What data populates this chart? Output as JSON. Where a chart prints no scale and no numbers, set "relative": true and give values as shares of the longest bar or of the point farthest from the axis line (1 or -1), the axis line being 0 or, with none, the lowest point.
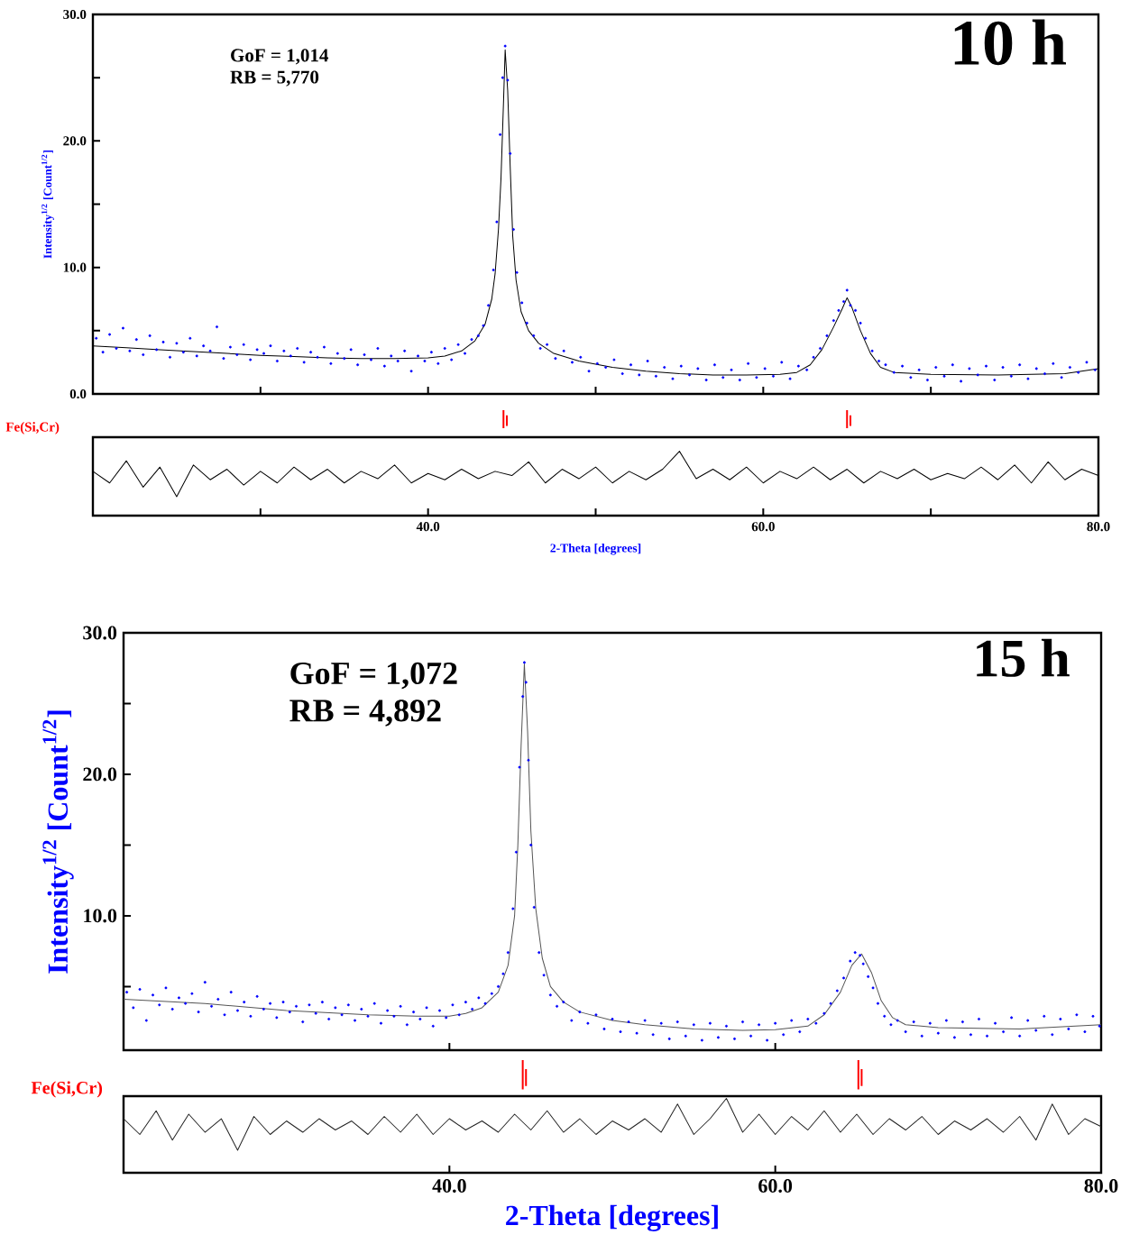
{
  "chart_data": [
    {
      "type": "scatter",
      "title": "10 h",
      "ylabel": "Intensity$^{1/2}$ [Count$^{1/2}$]",
      "annotations": [
        "GoF = 1,014",
        "RB = 5,770"
      ],
      "xlim": [
        20,
        80
      ],
      "xticks": [
        {
          "value": 30,
          "label": null
        },
        {
          "value": 40,
          "label": null
        },
        {
          "value": 50,
          "label": null
        },
        {
          "value": 60,
          "label": null
        },
        {
          "value": 70,
          "label": null
        }
      ],
      "ylim": [
        0,
        30
      ],
      "yticks": [
        {
          "value": 0,
          "label": "0.0"
        },
        {
          "value": 5,
          "label": null
        },
        {
          "value": 10,
          "label": "10.0"
        },
        {
          "value": 15,
          "label": null
        },
        {
          "value": 20,
          "label": "20.0"
        },
        {
          "value": 25,
          "label": null
        },
        {
          "value": 30,
          "label": "30.0"
        }
      ],
      "tick_labels": "y",
      "series": [
        {
          "type": "scatter",
          "marker": "circle",
          "color": "#0000ff",
          "x": [
            20.2,
            20.6,
            21.0,
            21.4,
            21.8,
            22.2,
            22.6,
            23.0,
            23.4,
            23.8,
            24.2,
            24.6,
            25.0,
            25.4,
            25.8,
            26.2,
            26.6,
            27.0,
            27.4,
            27.8,
            28.2,
            28.6,
            29.0,
            29.4,
            29.8,
            30.2,
            30.6,
            31.0,
            31.4,
            31.8,
            32.2,
            32.6,
            33.0,
            33.4,
            33.8,
            34.2,
            34.6,
            35.0,
            35.4,
            35.8,
            36.2,
            36.6,
            37.0,
            37.4,
            37.8,
            38.2,
            38.6,
            39.0,
            39.4,
            39.8,
            40.2,
            40.6,
            41.0,
            41.4,
            41.8,
            42.2,
            42.6,
            43.0,
            43.3,
            43.6,
            43.9,
            44.1,
            44.3,
            44.45,
            44.6,
            44.75,
            44.9,
            45.1,
            45.3,
            45.6,
            45.9,
            46.3,
            46.7,
            47.1,
            47.6,
            48.1,
            48.6,
            49.1,
            49.6,
            50.1,
            50.6,
            51.1,
            51.6,
            52.1,
            52.6,
            53.1,
            53.6,
            54.1,
            54.6,
            55.1,
            55.6,
            56.1,
            56.6,
            57.1,
            57.6,
            58.1,
            58.6,
            59.1,
            59.6,
            60.1,
            60.6,
            61.1,
            61.6,
            62.1,
            62.6,
            63.0,
            63.4,
            63.8,
            64.2,
            64.5,
            64.8,
            65.0,
            65.2,
            65.5,
            65.8,
            66.1,
            66.5,
            66.9,
            67.3,
            67.8,
            68.3,
            68.8,
            69.3,
            69.8,
            70.3,
            70.8,
            71.3,
            71.8,
            72.3,
            72.8,
            73.3,
            73.8,
            74.3,
            74.8,
            75.3,
            75.8,
            76.3,
            76.8,
            77.3,
            77.8,
            78.3,
            78.8,
            79.3,
            79.8
          ],
          "values": [
            4.4,
            3.3,
            4.7,
            3.6,
            5.2,
            3.4,
            4.3,
            3.1,
            4.6,
            3.5,
            4.1,
            2.9,
            4.0,
            3.3,
            4.4,
            3.0,
            3.8,
            3.4,
            5.3,
            2.8,
            3.7,
            3.1,
            3.9,
            2.7,
            3.5,
            3.2,
            3.8,
            2.6,
            3.4,
            3.0,
            3.6,
            2.5,
            3.3,
            2.9,
            3.7,
            2.4,
            3.2,
            2.8,
            3.5,
            2.3,
            3.1,
            2.7,
            3.6,
            2.2,
            3.0,
            2.6,
            3.4,
            1.8,
            3.0,
            2.6,
            3.3,
            2.4,
            3.6,
            2.7,
            3.9,
            3.2,
            4.3,
            4.6,
            5.4,
            7.0,
            9.8,
            13.6,
            20.5,
            25.0,
            27.5,
            24.8,
            19.0,
            13.0,
            9.6,
            7.2,
            5.6,
            4.6,
            3.6,
            3.9,
            2.8,
            3.4,
            2.5,
            2.9,
            1.8,
            2.4,
            2.1,
            2.7,
            1.6,
            2.3,
            1.5,
            2.6,
            1.4,
            2.1,
            1.2,
            2.2,
            1.5,
            2.0,
            1.1,
            2.3,
            1.3,
            1.9,
            1.1,
            2.4,
            1.3,
            2.0,
            1.4,
            2.5,
            1.2,
            2.2,
            1.9,
            2.9,
            3.6,
            4.6,
            5.8,
            6.6,
            7.3,
            8.2,
            7.0,
            6.6,
            5.6,
            4.4,
            3.4,
            2.6,
            2.3,
            1.7,
            2.2,
            1.3,
            1.9,
            1.1,
            2.1,
            1.4,
            2.3,
            1.0,
            2.0,
            1.5,
            2.2,
            1.1,
            2.1,
            1.4,
            2.3,
            1.2,
            2.0,
            1.6,
            2.4,
            1.3,
            2.1,
            1.7,
            2.5,
            1.9
          ]
        },
        {
          "type": "line",
          "color": "#000000",
          "x": [
            20,
            22,
            24,
            26,
            28,
            30,
            32,
            34,
            36,
            38,
            40,
            41,
            42,
            42.8,
            43.4,
            43.8,
            44.0,
            44.2,
            44.35,
            44.5,
            44.6,
            44.75,
            44.9,
            45.05,
            45.25,
            45.55,
            46.0,
            46.6,
            47.5,
            49,
            51,
            53,
            55,
            57,
            59,
            61,
            62,
            62.8,
            63.5,
            64.2,
            64.7,
            65.0,
            65.3,
            65.8,
            66.4,
            67.0,
            67.8,
            70,
            74,
            78,
            80
          ],
          "values": [
            3.8,
            3.65,
            3.5,
            3.35,
            3.2,
            3.05,
            2.95,
            2.85,
            2.8,
            2.8,
            2.85,
            3.0,
            3.4,
            4.2,
            5.5,
            7.5,
            9.5,
            13,
            17,
            23,
            27.2,
            24,
            18,
            12.5,
            9,
            6.5,
            5.0,
            4.0,
            3.2,
            2.6,
            2.1,
            1.8,
            1.6,
            1.5,
            1.5,
            1.55,
            1.7,
            2.3,
            3.5,
            5.3,
            6.7,
            7.6,
            6.8,
            5.0,
            3.2,
            2.1,
            1.7,
            1.55,
            1.5,
            1.6,
            2.0
          ]
        }
      ]
    },
    {
      "type": "line",
      "relative": true,
      "xlabel": "2-Theta [degrees]",
      "xlim": [
        20,
        80
      ],
      "xticks": [
        {
          "value": 30,
          "label": null
        },
        {
          "value": 40,
          "label": "40.0"
        },
        {
          "value": 50,
          "label": null
        },
        {
          "value": 60,
          "label": "60.0"
        },
        {
          "value": 70,
          "label": null
        },
        {
          "value": 80,
          "label": "80.0"
        }
      ],
      "tick_labels": "x",
      "series": [
        {
          "color": "#000000",
          "x": [
            20,
            21,
            22,
            23,
            24,
            25,
            26,
            27,
            28,
            29,
            30,
            31,
            32,
            33,
            34,
            35,
            36,
            37,
            38,
            39,
            40,
            41,
            42,
            43,
            44,
            45,
            46,
            47,
            48,
            49,
            50,
            51,
            52,
            53,
            54,
            55,
            56,
            57,
            58,
            59,
            60,
            61,
            62,
            63,
            64,
            65,
            66,
            67,
            68,
            69,
            70,
            71,
            72,
            73,
            74,
            75,
            76,
            77,
            78,
            79,
            80
          ],
          "values": [
            0.42,
            0.31,
            0.52,
            0.27,
            0.46,
            0.18,
            0.48,
            0.34,
            0.44,
            0.29,
            0.42,
            0.31,
            0.46,
            0.34,
            0.44,
            0.31,
            0.42,
            0.35,
            0.48,
            0.31,
            0.4,
            0.34,
            0.44,
            0.35,
            0.42,
            0.38,
            0.51,
            0.31,
            0.44,
            0.35,
            0.46,
            0.31,
            0.42,
            0.34,
            0.44,
            0.61,
            0.35,
            0.44,
            0.34,
            0.46,
            0.31,
            0.42,
            0.35,
            0.46,
            0.34,
            0.44,
            0.31,
            0.42,
            0.35,
            0.44,
            0.34,
            0.4,
            0.35,
            0.46,
            0.34,
            0.48,
            0.31,
            0.51,
            0.34,
            0.44,
            0.38
          ]
        },
        {
          "type": "line",
          "name": "Fe(Si,Cr)",
          "color": "#ff0000",
          "x": [
            44.5,
            44.5,
            44.6,
            44.7,
            44.7,
            64.9,
            65.0,
            65.0,
            65.1,
            65.2,
            65.2
          ],
          "values": [
            0.83,
            1,
            null,
            0.85,
            0.95,
            null,
            0.83,
            1,
            null,
            0.85,
            0.95
          ]
        }
      ]
    },
    {
      "type": "scatter",
      "title": "15 h",
      "ylabel": "Intensity$^{1/2}$ [Count$^{1/2}$]",
      "annotations": [
        "GoF = 1,072",
        "RB = 4,892"
      ],
      "xlim": [
        20,
        80
      ],
      "xticks": [
        {
          "value": 40,
          "label": null
        },
        {
          "value": 60,
          "label": null
        }
      ],
      "ylim": [
        0.5,
        30
      ],
      "yticks": [
        {
          "value": 5,
          "label": null
        },
        {
          "value": 10,
          "label": "10.0"
        },
        {
          "value": 15,
          "label": null
        },
        {
          "value": 20,
          "label": "20.0"
        },
        {
          "value": 25,
          "label": null
        },
        {
          "value": 30,
          "label": "30.0"
        }
      ],
      "tick_labels": "y",
      "series": [
        {
          "type": "scatter",
          "marker": "circle",
          "color": "#0000ff",
          "x": [
            20.2,
            20.6,
            21.0,
            21.4,
            21.8,
            22.2,
            22.6,
            23.0,
            23.4,
            23.8,
            24.2,
            24.6,
            25.0,
            25.4,
            25.8,
            26.2,
            26.6,
            27.0,
            27.4,
            27.8,
            28.2,
            28.6,
            29.0,
            29.4,
            29.8,
            30.2,
            30.6,
            31.0,
            31.4,
            31.8,
            32.2,
            32.6,
            33.0,
            33.4,
            33.8,
            34.2,
            34.6,
            35.0,
            35.4,
            35.8,
            36.2,
            36.6,
            37.0,
            37.4,
            37.8,
            38.2,
            38.6,
            39.0,
            39.4,
            39.8,
            40.2,
            40.6,
            41.0,
            41.4,
            41.8,
            42.2,
            42.6,
            43.0,
            43.3,
            43.6,
            43.9,
            44.1,
            44.3,
            44.5,
            44.6,
            44.7,
            44.85,
            45.0,
            45.2,
            45.5,
            45.8,
            46.2,
            46.6,
            47.0,
            47.5,
            48.0,
            48.5,
            49.0,
            49.5,
            50.0,
            50.5,
            51.0,
            51.5,
            52.0,
            52.5,
            53.0,
            53.5,
            54.0,
            54.5,
            55.0,
            55.5,
            56.0,
            56.5,
            57.0,
            57.5,
            58.0,
            58.5,
            59.0,
            59.5,
            60.0,
            60.5,
            61.0,
            61.5,
            62.0,
            62.5,
            63.0,
            63.4,
            63.8,
            64.2,
            64.6,
            64.9,
            65.2,
            65.4,
            65.7,
            66.0,
            66.3,
            66.7,
            67.1,
            67.5,
            68.0,
            68.5,
            69.0,
            69.5,
            70.0,
            70.5,
            71.0,
            71.5,
            72.0,
            72.5,
            73.0,
            73.5,
            74.0,
            74.5,
            75.0,
            75.5,
            76.0,
            76.5,
            77.0,
            77.5,
            78.0,
            78.5,
            79.0,
            79.5,
            79.9
          ],
          "values": [
            4.6,
            3.5,
            4.8,
            2.6,
            4.4,
            3.7,
            4.9,
            3.4,
            4.2,
            3.8,
            4.5,
            3.2,
            5.3,
            3.6,
            4.1,
            3.0,
            4.6,
            3.3,
            3.9,
            2.9,
            4.3,
            3.4,
            3.8,
            2.8,
            3.9,
            3.2,
            3.6,
            2.5,
            3.7,
            3.1,
            3.9,
            2.7,
            3.5,
            3.0,
            3.7,
            2.6,
            3.4,
            2.9,
            3.8,
            2.4,
            3.3,
            2.9,
            3.6,
            2.3,
            3.2,
            2.7,
            3.5,
            2.2,
            3.3,
            2.8,
            3.7,
            3.0,
            3.9,
            3.4,
            4.2,
            3.8,
            4.5,
            5.0,
            5.9,
            7.4,
            10.5,
            14.5,
            20.5,
            25.5,
            27.9,
            26.5,
            21.0,
            15.0,
            10.6,
            7.4,
            5.8,
            4.4,
            3.6,
            3.9,
            2.6,
            3.2,
            2.4,
            3.0,
            2.0,
            2.7,
            1.8,
            2.5,
            1.7,
            2.6,
            1.6,
            2.4,
            1.3,
            2.5,
            1.5,
            2.3,
            1.2,
            2.4,
            1.4,
            2.2,
            1.3,
            2.5,
            1.5,
            2.3,
            1.2,
            2.4,
            1.6,
            2.6,
            1.8,
            2.7,
            2.4,
            3.1,
            3.8,
            4.7,
            5.6,
            6.8,
            7.4,
            7.2,
            6.6,
            5.7,
            4.9,
            3.8,
            2.9,
            2.3,
            2.6,
            1.8,
            2.5,
            1.5,
            2.4,
            1.7,
            2.6,
            1.4,
            2.5,
            1.6,
            2.7,
            1.5,
            2.4,
            1.8,
            2.8,
            1.5,
            2.6,
            1.9,
            2.9,
            1.6,
            2.7,
            2.0,
            3.0,
            1.8,
            2.9,
            2.2
          ]
        },
        {
          "type": "line",
          "color": "#555555",
          "x": [
            20,
            25,
            30,
            35,
            38,
            40,
            41,
            42,
            43,
            43.6,
            44.0,
            44.2,
            44.4,
            44.6,
            44.8,
            45.0,
            45.3,
            45.7,
            46.2,
            47,
            48,
            50,
            52,
            55,
            58,
            60,
            62,
            63,
            64,
            64.7,
            65.3,
            65.9,
            66.5,
            67.2,
            68,
            70,
            75,
            80
          ],
          "values": [
            4.1,
            3.8,
            3.3,
            3.0,
            2.9,
            2.9,
            3.1,
            3.5,
            4.6,
            6.5,
            10,
            15,
            22,
            27.8,
            23,
            16,
            10.5,
            7,
            5,
            3.9,
            3.2,
            2.6,
            2.3,
            2.0,
            1.9,
            1.95,
            2.2,
            3.0,
            4.6,
            6.5,
            7.3,
            6.0,
            4.0,
            2.8,
            2.3,
            2.1,
            2.0,
            2.3
          ]
        }
      ]
    },
    {
      "type": "line",
      "relative": true,
      "xlabel": "2-Theta [degrees]",
      "xlim": [
        20,
        80
      ],
      "xticks": [
        {
          "value": 40,
          "label": "40.0"
        },
        {
          "value": 60,
          "label": "60.0"
        },
        {
          "value": 80,
          "label": "80.0"
        }
      ],
      "tick_labels": "x",
      "series": [
        {
          "color": "#222222",
          "x": [
            20,
            21,
            22,
            23,
            24,
            25,
            26,
            27,
            28,
            29,
            30,
            31,
            32,
            33,
            34,
            35,
            36,
            37,
            38,
            39,
            40,
            41,
            42,
            43,
            44,
            45,
            46,
            47,
            48,
            49,
            50,
            51,
            52,
            53,
            54,
            55,
            56,
            57,
            58,
            59,
            60,
            61,
            62,
            63,
            64,
            65,
            66,
            67,
            68,
            69,
            70,
            71,
            72,
            73,
            74,
            75,
            76,
            77,
            78,
            79,
            80
          ],
          "values": [
            0.48,
            0.34,
            0.55,
            0.29,
            0.52,
            0.36,
            0.48,
            0.2,
            0.5,
            0.34,
            0.46,
            0.36,
            0.48,
            0.38,
            0.46,
            0.34,
            0.5,
            0.36,
            0.52,
            0.34,
            0.48,
            0.38,
            0.46,
            0.36,
            0.52,
            0.38,
            0.55,
            0.36,
            0.48,
            0.34,
            0.46,
            0.38,
            0.48,
            0.36,
            0.61,
            0.34,
            0.48,
            0.66,
            0.36,
            0.52,
            0.34,
            0.5,
            0.38,
            0.55,
            0.36,
            0.52,
            0.34,
            0.48,
            0.38,
            0.5,
            0.34,
            0.46,
            0.38,
            0.48,
            0.36,
            0.5,
            0.29,
            0.61,
            0.34,
            0.48,
            0.41
          ]
        },
        {
          "type": "line",
          "name": "Fe(Si,Cr)",
          "color": "#ff0000",
          "x": [
            44.5,
            44.5,
            44.6,
            44.7,
            44.7,
            64.9,
            65.1,
            65.1,
            65.2,
            65.3,
            65.3
          ],
          "values": [
            0.74,
            1,
            null,
            0.77,
            0.92,
            null,
            0.74,
            1,
            null,
            0.77,
            0.92
          ]
        }
      ]
    }
  ]
}
